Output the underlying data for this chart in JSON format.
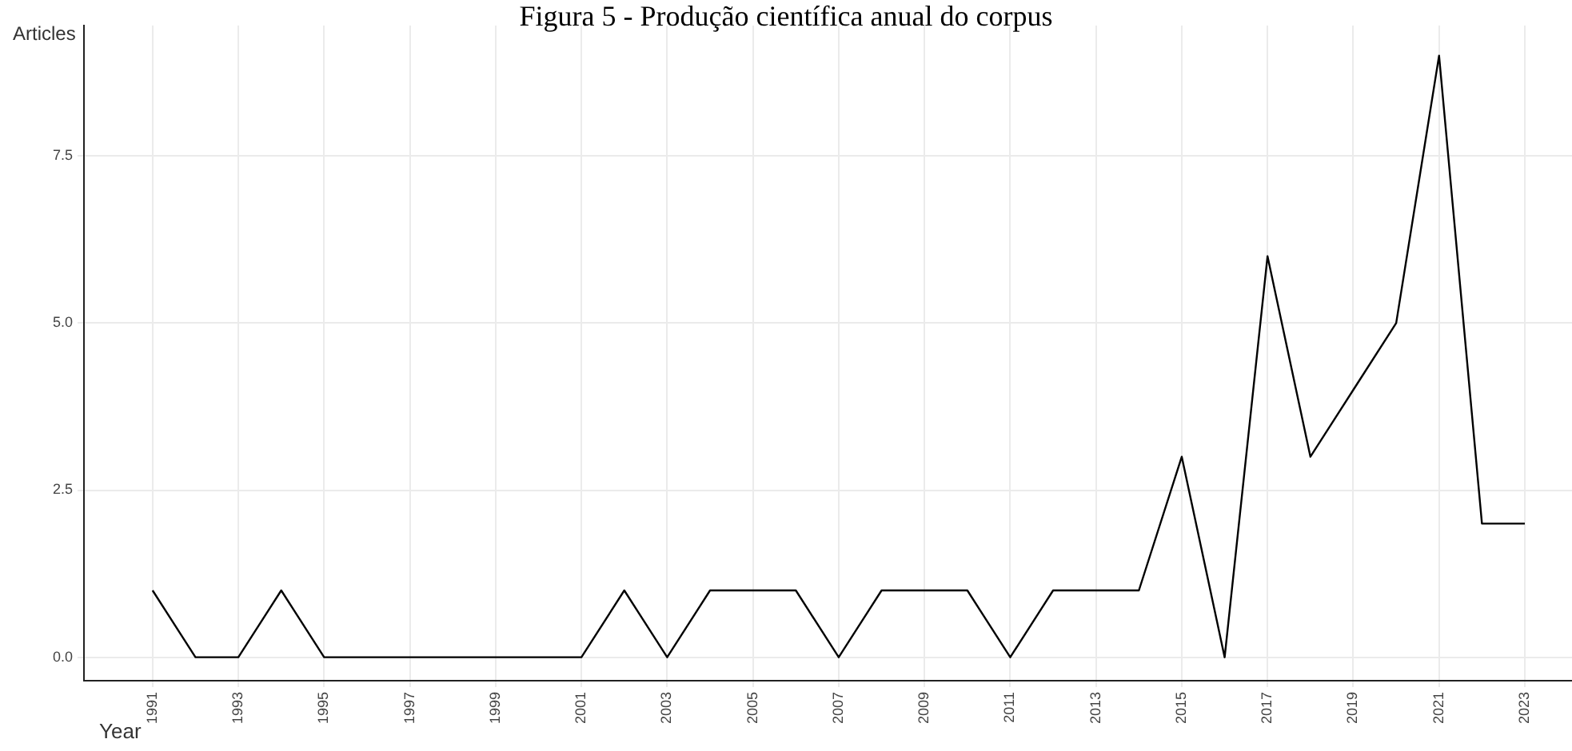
{
  "chart_data": {
    "type": "line",
    "title": "Figura 5 - Produção científica anual do corpus",
    "xlabel": "Year",
    "ylabel": "Articles",
    "x": [
      1991,
      1992,
      1993,
      1994,
      1995,
      1996,
      1997,
      1998,
      1999,
      2000,
      2001,
      2002,
      2003,
      2004,
      2005,
      2006,
      2007,
      2008,
      2009,
      2010,
      2011,
      2012,
      2013,
      2014,
      2015,
      2016,
      2017,
      2018,
      2019,
      2020,
      2021,
      2022,
      2023
    ],
    "series": [
      {
        "color": "#000000",
        "values": [
          1,
          0,
          0,
          1,
          0,
          0,
          0,
          0,
          0,
          0,
          0,
          1,
          0,
          1,
          1,
          1,
          0,
          1,
          1,
          1,
          0,
          1,
          1,
          1,
          3,
          0,
          6,
          3,
          4,
          5,
          9,
          2,
          2
        ]
      }
    ],
    "xlim": [
      1989.4,
      2024.1
    ],
    "xticks": [
      1991,
      1993,
      1995,
      1997,
      1999,
      2001,
      2003,
      2005,
      2007,
      2009,
      2011,
      2013,
      2015,
      2017,
      2019,
      2021,
      2023
    ],
    "ylim": [
      -0.35,
      9.45
    ],
    "yticks": [
      {
        "value": 0,
        "label": "0.0"
      },
      {
        "value": 2.5,
        "label": "2.5"
      },
      {
        "value": 5,
        "label": "5.0"
      },
      {
        "value": 7.5,
        "label": "7.5"
      }
    ],
    "grid": true,
    "legend": false,
    "marker": "none",
    "line_style": "solid"
  }
}
